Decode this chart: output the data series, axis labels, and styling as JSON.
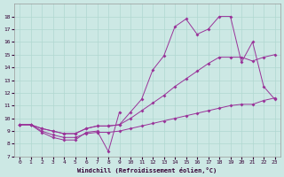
{
  "xlabel": "Windchill (Refroidissement éolien,°C)",
  "background_color": "#cce8e4",
  "grid_color": "#b0d8d0",
  "line_color": "#993399",
  "x_full": [
    0,
    1,
    2,
    3,
    4,
    5,
    6,
    7,
    8,
    9,
    10,
    11,
    12,
    13,
    14,
    15,
    16,
    17,
    18,
    19,
    20,
    21,
    22,
    23
  ],
  "line_wavy": {
    "x": [
      0,
      1,
      2,
      3,
      4,
      5,
      6,
      7,
      8,
      9
    ],
    "y": [
      9.5,
      9.5,
      8.9,
      8.5,
      8.3,
      8.3,
      8.9,
      9.0,
      7.4,
      10.5
    ]
  },
  "line_low": {
    "x": [
      0,
      1,
      2,
      3,
      4,
      5,
      6,
      7,
      8,
      9,
      10,
      11,
      12,
      13,
      14,
      15,
      16,
      17,
      18,
      19,
      20,
      21,
      22,
      23
    ],
    "y": [
      9.5,
      9.5,
      9.0,
      8.7,
      8.5,
      8.5,
      8.8,
      8.9,
      8.9,
      9.0,
      9.2,
      9.4,
      9.6,
      9.8,
      10.0,
      10.2,
      10.4,
      10.6,
      10.8,
      11.0,
      11.1,
      11.1,
      11.4,
      11.6
    ]
  },
  "line_mid": {
    "x": [
      0,
      1,
      2,
      3,
      4,
      5,
      6,
      7,
      8,
      9,
      10,
      11,
      12,
      13,
      14,
      15,
      16,
      17,
      18,
      19,
      20,
      21,
      22,
      23
    ],
    "y": [
      9.5,
      9.5,
      9.2,
      9.0,
      8.8,
      8.8,
      9.2,
      9.4,
      9.4,
      9.5,
      10.0,
      10.6,
      11.2,
      11.8,
      12.5,
      13.1,
      13.7,
      14.3,
      14.8,
      14.8,
      14.8,
      14.5,
      14.8,
      15.0
    ]
  },
  "line_peak": {
    "x": [
      0,
      1,
      2,
      3,
      4,
      5,
      6,
      7,
      8,
      9,
      10,
      11,
      12,
      13,
      14,
      15,
      16,
      17,
      18,
      19,
      20,
      21,
      22,
      23
    ],
    "y": [
      9.5,
      9.5,
      9.2,
      9.0,
      8.8,
      8.8,
      9.2,
      9.4,
      9.4,
      9.5,
      10.5,
      11.5,
      13.8,
      14.9,
      17.2,
      17.8,
      16.6,
      17.0,
      18.0,
      18.0,
      14.4,
      16.0,
      12.5,
      11.5
    ]
  },
  "ylim": [
    7,
    19
  ],
  "xlim": [
    -0.5,
    23.5
  ],
  "yticks": [
    7,
    8,
    9,
    10,
    11,
    12,
    13,
    14,
    15,
    16,
    17,
    18
  ],
  "xticks": [
    0,
    1,
    2,
    3,
    4,
    5,
    6,
    7,
    8,
    9,
    10,
    11,
    12,
    13,
    14,
    15,
    16,
    17,
    18,
    19,
    20,
    21,
    22,
    23
  ]
}
